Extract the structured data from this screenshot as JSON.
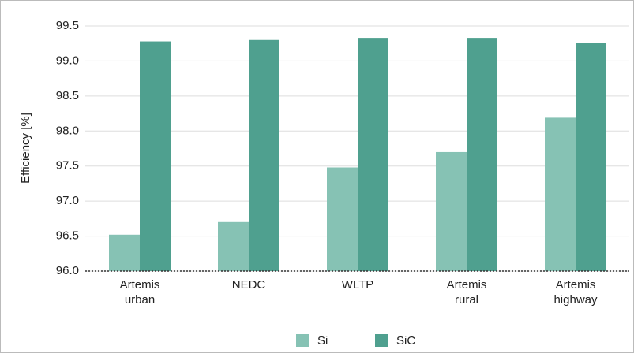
{
  "chart_data": {
    "type": "bar",
    "y_label": "Efficiency [%]",
    "categories": [
      "Artemis urban",
      "NEDC",
      "WLTP",
      "Artemis rural",
      "Artemis highway"
    ],
    "series": [
      {
        "name": "Si",
        "color": "#86c2b4",
        "values": [
          96.52,
          96.7,
          97.48,
          97.7,
          98.19
        ]
      },
      {
        "name": "SiC",
        "color": "#4fa08f",
        "values": [
          99.28,
          99.3,
          99.33,
          99.33,
          99.26
        ]
      }
    ],
    "ylim": [
      96,
      99.5
    ],
    "yticks": [
      {
        "value": 96,
        "label": "96.0"
      },
      96.5,
      {
        "value": 97,
        "label": "97.0"
      },
      97.5,
      {
        "value": 98,
        "label": "98.0"
      },
      98.5,
      {
        "value": 99,
        "label": "99.0"
      },
      99.5
    ],
    "grid": true,
    "legend": "bottom"
  }
}
